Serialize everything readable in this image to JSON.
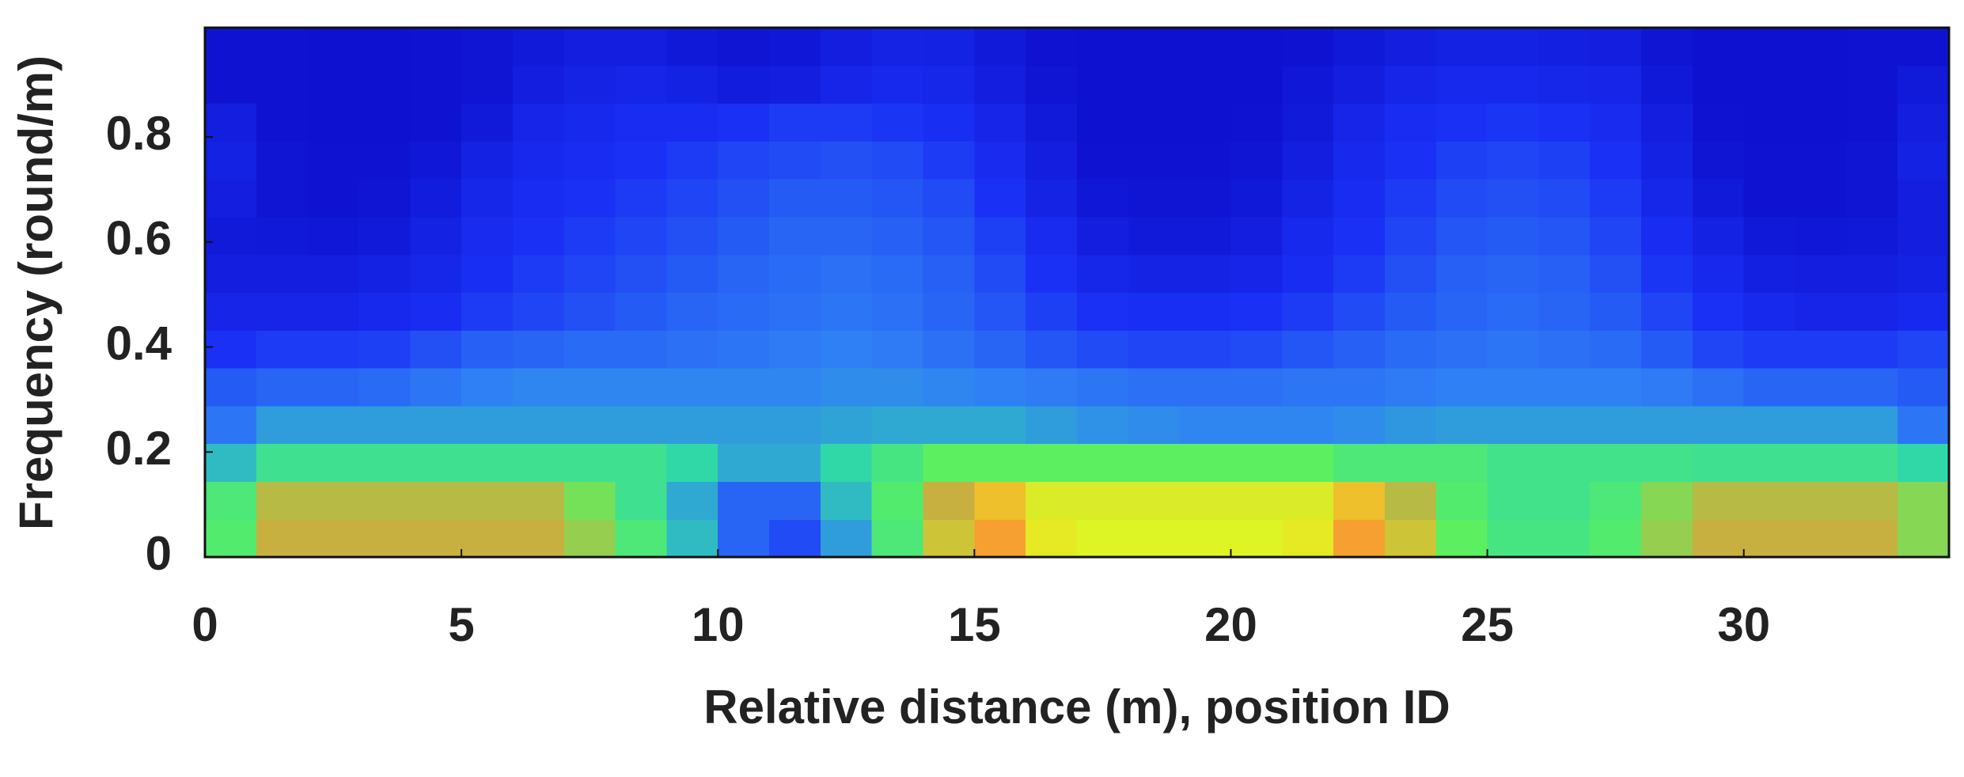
{
  "chart_data": {
    "type": "heatmap",
    "xlabel": "Relative distance (m), position ID",
    "ylabel": "Frequency (round/m)",
    "xlim": [
      0,
      34
    ],
    "ylim": [
      0,
      1.008
    ],
    "xticks": [
      0,
      5,
      10,
      15,
      20,
      25,
      30
    ],
    "yticks": [
      0,
      0.2,
      0.4,
      0.6,
      0.8
    ],
    "xbins": [
      0,
      1,
      2,
      3,
      4,
      5,
      6,
      7,
      8,
      9,
      10,
      11,
      12,
      13,
      14,
      15,
      16,
      17,
      18,
      19,
      20,
      21,
      22,
      23,
      24,
      25,
      26,
      27,
      28,
      29,
      30,
      31,
      32,
      33,
      34
    ],
    "ybins": [
      0,
      0.072,
      0.144,
      0.216,
      0.288,
      0.36,
      0.432,
      0.504,
      0.576,
      0.648,
      0.72,
      0.792,
      0.864,
      0.936,
      1.008
    ],
    "colormap": [
      {
        "value": 0,
        "color": "#0c0cc8"
      },
      {
        "value": 0.2,
        "color": "#1a30f5"
      },
      {
        "value": 0.35,
        "color": "#2f80f5"
      },
      {
        "value": 0.5,
        "color": "#30d8a8"
      },
      {
        "value": 0.65,
        "color": "#5cf060"
      },
      {
        "value": 0.78,
        "color": "#c8b040"
      },
      {
        "value": 0.86,
        "color": "#e0ff20"
      },
      {
        "value": 0.95,
        "color": "#f5a030"
      }
    ],
    "z": [
      [
        0.62,
        0.78,
        0.78,
        0.78,
        0.78,
        0.78,
        0.78,
        0.72,
        0.6,
        0.45,
        0.3,
        0.25,
        0.4,
        0.6,
        0.8,
        0.95,
        0.88,
        0.85,
        0.85,
        0.85,
        0.85,
        0.88,
        0.95,
        0.8,
        0.65,
        0.58,
        0.58,
        0.62,
        0.72,
        0.78,
        0.78,
        0.78,
        0.78,
        0.7
      ],
      [
        0.6,
        0.76,
        0.76,
        0.76,
        0.76,
        0.76,
        0.76,
        0.68,
        0.55,
        0.42,
        0.3,
        0.3,
        0.45,
        0.62,
        0.78,
        0.92,
        0.84,
        0.84,
        0.84,
        0.84,
        0.84,
        0.84,
        0.92,
        0.76,
        0.62,
        0.56,
        0.56,
        0.6,
        0.7,
        0.76,
        0.76,
        0.76,
        0.76,
        0.7
      ],
      [
        0.45,
        0.55,
        0.55,
        0.55,
        0.55,
        0.55,
        0.55,
        0.55,
        0.55,
        0.5,
        0.42,
        0.42,
        0.5,
        0.58,
        0.65,
        0.65,
        0.65,
        0.65,
        0.65,
        0.65,
        0.65,
        0.65,
        0.6,
        0.6,
        0.6,
        0.56,
        0.56,
        0.56,
        0.56,
        0.55,
        0.55,
        0.55,
        0.55,
        0.5
      ],
      [
        0.33,
        0.4,
        0.4,
        0.4,
        0.4,
        0.4,
        0.4,
        0.4,
        0.4,
        0.4,
        0.4,
        0.4,
        0.41,
        0.42,
        0.42,
        0.42,
        0.4,
        0.38,
        0.37,
        0.36,
        0.36,
        0.36,
        0.37,
        0.39,
        0.4,
        0.4,
        0.4,
        0.4,
        0.4,
        0.4,
        0.4,
        0.4,
        0.4,
        0.33
      ],
      [
        0.28,
        0.3,
        0.3,
        0.31,
        0.33,
        0.35,
        0.36,
        0.36,
        0.36,
        0.36,
        0.36,
        0.36,
        0.37,
        0.37,
        0.36,
        0.35,
        0.34,
        0.33,
        0.32,
        0.32,
        0.32,
        0.33,
        0.33,
        0.34,
        0.35,
        0.35,
        0.35,
        0.35,
        0.34,
        0.32,
        0.3,
        0.3,
        0.3,
        0.28
      ],
      [
        0.2,
        0.22,
        0.22,
        0.23,
        0.26,
        0.29,
        0.3,
        0.31,
        0.31,
        0.32,
        0.33,
        0.34,
        0.35,
        0.34,
        0.32,
        0.3,
        0.27,
        0.25,
        0.24,
        0.24,
        0.25,
        0.27,
        0.29,
        0.31,
        0.32,
        0.33,
        0.32,
        0.31,
        0.28,
        0.24,
        0.22,
        0.22,
        0.22,
        0.24
      ],
      [
        0.14,
        0.14,
        0.14,
        0.16,
        0.18,
        0.22,
        0.24,
        0.26,
        0.28,
        0.3,
        0.31,
        0.32,
        0.33,
        0.32,
        0.3,
        0.27,
        0.23,
        0.2,
        0.19,
        0.19,
        0.2,
        0.22,
        0.25,
        0.28,
        0.3,
        0.31,
        0.3,
        0.28,
        0.24,
        0.2,
        0.16,
        0.14,
        0.14,
        0.16
      ],
      [
        0.1,
        0.1,
        0.1,
        0.12,
        0.15,
        0.19,
        0.22,
        0.24,
        0.26,
        0.28,
        0.3,
        0.31,
        0.32,
        0.31,
        0.29,
        0.25,
        0.2,
        0.15,
        0.13,
        0.13,
        0.14,
        0.18,
        0.22,
        0.26,
        0.29,
        0.3,
        0.29,
        0.26,
        0.21,
        0.16,
        0.11,
        0.1,
        0.1,
        0.12
      ],
      [
        0.08,
        0.07,
        0.06,
        0.08,
        0.12,
        0.17,
        0.2,
        0.22,
        0.24,
        0.26,
        0.28,
        0.3,
        0.3,
        0.29,
        0.27,
        0.23,
        0.17,
        0.1,
        0.08,
        0.08,
        0.1,
        0.16,
        0.2,
        0.24,
        0.27,
        0.28,
        0.27,
        0.24,
        0.18,
        0.12,
        0.07,
        0.06,
        0.07,
        0.1
      ],
      [
        0.1,
        0.05,
        0.04,
        0.05,
        0.09,
        0.15,
        0.18,
        0.2,
        0.22,
        0.24,
        0.26,
        0.28,
        0.28,
        0.27,
        0.25,
        0.2,
        0.13,
        0.06,
        0.05,
        0.05,
        0.07,
        0.13,
        0.18,
        0.22,
        0.25,
        0.26,
        0.25,
        0.22,
        0.15,
        0.08,
        0.04,
        0.04,
        0.05,
        0.1
      ],
      [
        0.12,
        0.05,
        0.04,
        0.04,
        0.06,
        0.12,
        0.16,
        0.18,
        0.2,
        0.22,
        0.24,
        0.25,
        0.26,
        0.25,
        0.22,
        0.17,
        0.1,
        0.04,
        0.04,
        0.04,
        0.05,
        0.1,
        0.16,
        0.2,
        0.23,
        0.24,
        0.23,
        0.2,
        0.12,
        0.05,
        0.04,
        0.04,
        0.05,
        0.12
      ],
      [
        0.1,
        0.04,
        0.03,
        0.03,
        0.04,
        0.08,
        0.14,
        0.16,
        0.18,
        0.18,
        0.2,
        0.22,
        0.22,
        0.21,
        0.19,
        0.14,
        0.08,
        0.03,
        0.03,
        0.03,
        0.04,
        0.08,
        0.14,
        0.18,
        0.2,
        0.21,
        0.2,
        0.17,
        0.1,
        0.04,
        0.03,
        0.03,
        0.04,
        0.1
      ],
      [
        0.04,
        0.04,
        0.03,
        0.03,
        0.04,
        0.05,
        0.1,
        0.13,
        0.14,
        0.12,
        0.09,
        0.1,
        0.14,
        0.16,
        0.15,
        0.1,
        0.05,
        0.03,
        0.03,
        0.03,
        0.03,
        0.06,
        0.1,
        0.14,
        0.16,
        0.16,
        0.15,
        0.14,
        0.07,
        0.03,
        0.03,
        0.03,
        0.04,
        0.08
      ],
      [
        0.04,
        0.04,
        0.03,
        0.03,
        0.04,
        0.05,
        0.08,
        0.1,
        0.1,
        0.07,
        0.05,
        0.06,
        0.1,
        0.13,
        0.12,
        0.08,
        0.04,
        0.03,
        0.03,
        0.03,
        0.03,
        0.04,
        0.07,
        0.1,
        0.12,
        0.12,
        0.11,
        0.1,
        0.05,
        0.03,
        0.03,
        0.03,
        0.04,
        0.04
      ]
    ]
  }
}
